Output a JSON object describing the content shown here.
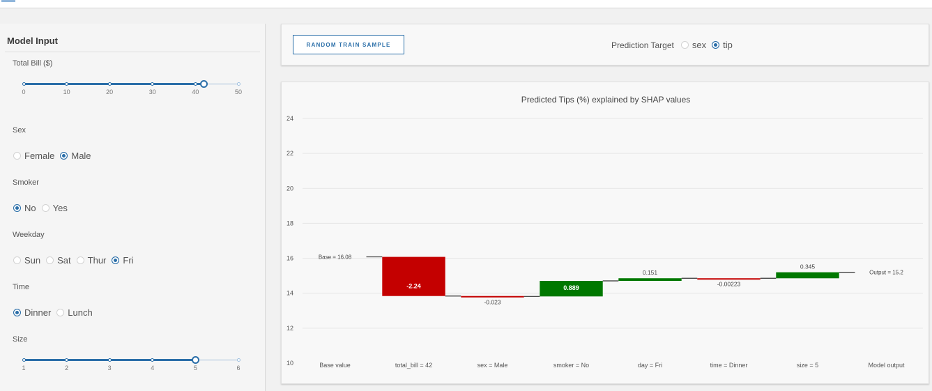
{
  "sidebar": {
    "title": "Model Input",
    "total_bill": {
      "label": "Total Bill ($)",
      "marks": [
        "0",
        "10",
        "20",
        "30",
        "40",
        "50"
      ],
      "min": 0,
      "max": 50,
      "value": 42
    },
    "sex": {
      "label": "Sex",
      "options": [
        "Female",
        "Male"
      ],
      "selected": "Male"
    },
    "smoker": {
      "label": "Smoker",
      "options": [
        "No",
        "Yes"
      ],
      "selected": "No"
    },
    "weekday": {
      "label": "Weekday",
      "options": [
        "Sun",
        "Sat",
        "Thur",
        "Fri"
      ],
      "selected": "Fri"
    },
    "time": {
      "label": "Time",
      "options": [
        "Dinner",
        "Lunch"
      ],
      "selected": "Dinner"
    },
    "size": {
      "label": "Size",
      "marks": [
        "1",
        "2",
        "3",
        "4",
        "5",
        "6"
      ],
      "min": 1,
      "max": 6,
      "value": 5
    }
  },
  "toolbar": {
    "random_button": "RANDOM TRAIN SAMPLE",
    "target_label": "Prediction Target",
    "target_options": [
      "sex",
      "tip"
    ],
    "target_selected": "tip"
  },
  "colors": {
    "accent": "#2a6ea8",
    "negative": "#c40000",
    "positive": "#007800"
  },
  "chart_data": {
    "type": "waterfall",
    "title": "Predicted Tips (%) explained by SHAP values",
    "ylim": [
      10,
      24
    ],
    "yticks": [
      10,
      12,
      14,
      16,
      18,
      20,
      22,
      24
    ],
    "base": {
      "label": "Base value",
      "value": 16.08,
      "text": "Base = 16.08"
    },
    "output": {
      "label": "Model output",
      "value": 15.2,
      "text": "Output = 15.2"
    },
    "contributions": [
      {
        "feature": "total_bill = 42",
        "value": -2.24,
        "text": "-2.24"
      },
      {
        "feature": "sex = Male",
        "value": -0.023,
        "text": "-0.023"
      },
      {
        "feature": "smoker = No",
        "value": 0.889,
        "text": "0.889"
      },
      {
        "feature": "day = Fri",
        "value": 0.151,
        "text": "0.151"
      },
      {
        "feature": "time = Dinner",
        "value": -0.00223,
        "text": "-0.00223"
      },
      {
        "feature": "size = 5",
        "value": 0.345,
        "text": "0.345"
      }
    ]
  }
}
